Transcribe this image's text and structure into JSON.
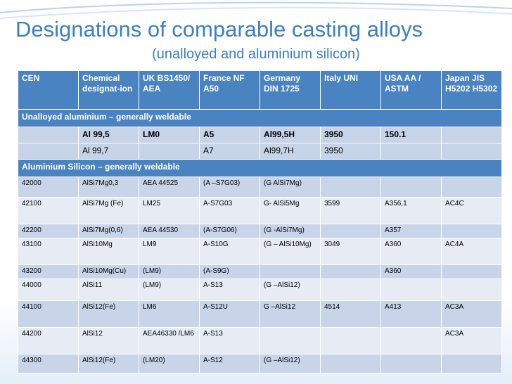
{
  "slide": {
    "title": "Designations of comparable casting alloys",
    "subtitle": "(unalloyed and aluminium silicon)"
  },
  "table": {
    "headers": [
      "CEN",
      "Chemical designat-ion",
      "UK BS1450/ AEA",
      " France NF A50",
      "Germany DIN 1725",
      "Italy UNI",
      "USA AA / ASTM",
      "Japan JIS H5202 H5302"
    ],
    "section1": "Unalloyed aluminium – generally weldable",
    "unalloyed_rows": [
      [
        "",
        "Al 99,5",
        "LM0",
        "A5",
        "Al99,5H",
        "3950",
        "150.1",
        ""
      ],
      [
        "",
        "Al 99,7",
        "",
        "A7",
        "Al99,7H",
        "3950",
        "",
        ""
      ]
    ],
    "section2": "Aluminium Silicon – generally weldable",
    "silicon_rows": [
      [
        "42000",
        "AlSi7Mg0,3",
        "AEA 44525",
        "(A –S7G03)",
        "(G AlSi7Mg)",
        "",
        "",
        ""
      ],
      [
        "42100",
        "AlSi7Mg (Fe)",
        "LM25",
        "A-S7G03",
        "G- AlSi5Mg",
        "3599",
        "A356,1",
        "AC4C"
      ],
      [
        "42200",
        "AlSi7Mg(0,6)",
        "AEA 44530",
        "(A-S7G06)",
        "(G -AlSi7Mg)",
        "",
        "A357",
        ""
      ],
      [
        "43100",
        "AlSi10Mg",
        "LM9",
        "A-S10G",
        "(G – AlSi10Mg)",
        "3049",
        "A360",
        "AC4A"
      ],
      [
        "43200",
        "AlSi10Mg(Cu)",
        "(LM9)",
        "(A-S9G)",
        "",
        "",
        "A360",
        ""
      ],
      [
        "44000",
        "AlSi11",
        "(LM9)",
        "A-S13",
        "(G –AlSi12)",
        "",
        "",
        ""
      ],
      [
        "44100",
        "AlSi12(Fe)",
        "LM6",
        "A-S12U",
        "G –AlSi12",
        "4514",
        "A413",
        "AC3A"
      ],
      [
        "44200",
        "AlSi12",
        "AEA46330 /LM6",
        "A-S13",
        "",
        "",
        "",
        "AC3A"
      ],
      [
        "44300",
        "AlSi12(Fe)",
        "(LM20)",
        "A-S12",
        "(G –AlSi12)",
        "",
        "",
        ""
      ]
    ]
  },
  "colors": {
    "title": "#3b7fc4",
    "header_bg": "#4a83c2",
    "row_dark": "#c8d4e8",
    "row_light": "#e6ebf4"
  }
}
